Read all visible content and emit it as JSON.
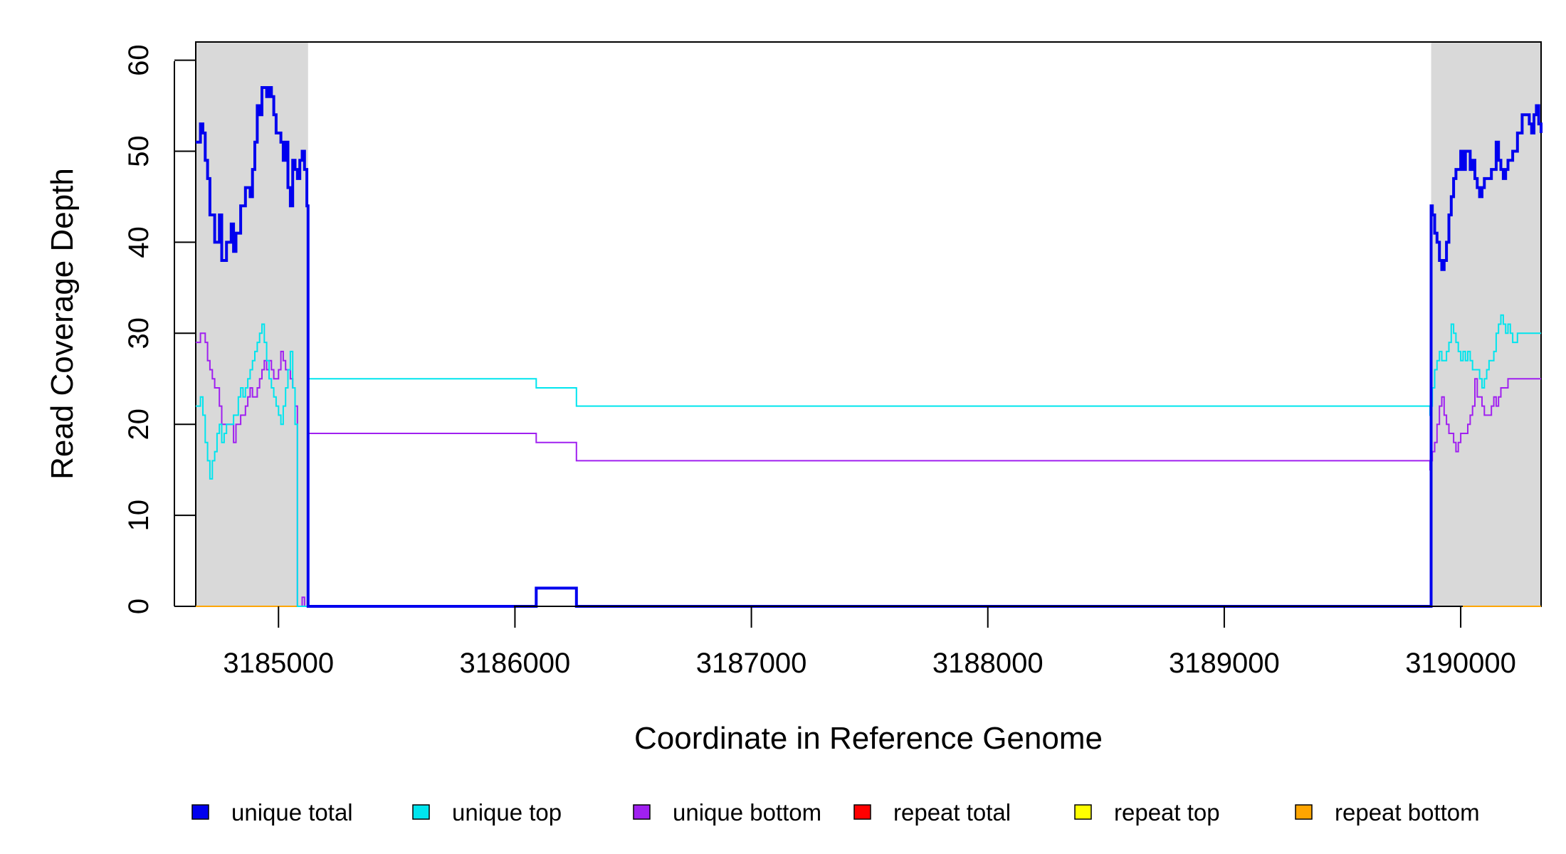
{
  "chart_data": {
    "type": "line",
    "title": "",
    "xlabel": "Coordinate in Reference Genome",
    "ylabel": "Read Coverage Depth",
    "xlim": [
      3184650,
      3190340
    ],
    "ylim": [
      0,
      62
    ],
    "x_ticks": [
      3185000,
      3186000,
      3187000,
      3188000,
      3189000,
      3190000
    ],
    "x_tick_labels": [
      "3185000",
      "3186000",
      "3187000",
      "3188000",
      "3189000",
      "3190000"
    ],
    "y_ticks": [
      0,
      10,
      20,
      30,
      40,
      50,
      60
    ],
    "y_tick_labels": [
      "0",
      "10",
      "20",
      "30",
      "40",
      "50",
      "60"
    ],
    "grid": false,
    "legend_position": "bottom",
    "shaded_regions": [
      {
        "x_start": 3184650,
        "x_end": 3185125,
        "color": "#d9d9d9"
      },
      {
        "x_start": 3189875,
        "x_end": 3190340,
        "color": "#d9d9d9"
      }
    ],
    "series": [
      {
        "name": "unique total",
        "color": "#0000ee",
        "stroke_width": 4,
        "x": [
          3184650,
          3184670,
          3184680,
          3184690,
          3184700,
          3184710,
          3184720,
          3184730,
          3184750,
          3184760,
          3184780,
          3184800,
          3184810,
          3184820,
          3184830,
          3184840,
          3184860,
          3184880,
          3184890,
          3184900,
          3184910,
          3184920,
          3184930,
          3184940,
          3184950,
          3184960,
          3184970,
          3184980,
          3184990,
          3185000,
          3185010,
          3185020,
          3185030,
          3185040,
          3185050,
          3185060,
          3185070,
          3185080,
          3185090,
          3185100,
          3185110,
          3185120,
          3185125,
          3185130,
          3186090,
          3186260,
          3189870,
          3189875,
          3189880,
          3189890,
          3189900,
          3189910,
          3189920,
          3189930,
          3189940,
          3189950,
          3189960,
          3189970,
          3189980,
          3189990,
          3190000,
          3190010,
          3190020,
          3190030,
          3190040,
          3190050,
          3190060,
          3190070,
          3190080,
          3190090,
          3190100,
          3190110,
          3190120,
          3190130,
          3190140,
          3190150,
          3190160,
          3190170,
          3190180,
          3190190,
          3190200,
          3190220,
          3190240,
          3190260,
          3190270,
          3190280,
          3190290,
          3190300,
          3190310,
          3190320,
          3190330,
          3190340
        ],
        "y": [
          51,
          53,
          52,
          49,
          47,
          43,
          43,
          40,
          43,
          38,
          40,
          42,
          39,
          41,
          41,
          44,
          46,
          45,
          48,
          51,
          55,
          54,
          57,
          57,
          56,
          57,
          56,
          54,
          52,
          52,
          51,
          49,
          51,
          46,
          44,
          49,
          48,
          47,
          49,
          50,
          48,
          44,
          0,
          0,
          2,
          0,
          0,
          44,
          43,
          41,
          40,
          38,
          37,
          38,
          40,
          43,
          45,
          47,
          48,
          48,
          50,
          48,
          50,
          50,
          48,
          49,
          47,
          46,
          45,
          46,
          47,
          47,
          47,
          48,
          48,
          51,
          49,
          48,
          47,
          48,
          49,
          50,
          52,
          54,
          54,
          54,
          53,
          52,
          54,
          55,
          53,
          52
        ]
      },
      {
        "name": "unique top",
        "color": "#00e5ee",
        "stroke_width": 2,
        "x": [
          3184650,
          3184670,
          3184680,
          3184690,
          3184700,
          3184710,
          3184720,
          3184730,
          3184740,
          3184750,
          3184760,
          3184770,
          3184780,
          3184790,
          3184800,
          3184810,
          3184820,
          3184830,
          3184840,
          3184850,
          3184860,
          3184870,
          3184880,
          3184890,
          3184900,
          3184910,
          3184920,
          3184930,
          3184940,
          3184950,
          3184960,
          3184970,
          3184980,
          3184990,
          3185000,
          3185010,
          3185020,
          3185030,
          3185040,
          3185050,
          3185060,
          3185070,
          3185080,
          3185090,
          3185100,
          3185110,
          3185120,
          3185125,
          3186090,
          3186260,
          3189870,
          3189875,
          3189880,
          3189890,
          3189900,
          3189910,
          3189920,
          3189930,
          3189940,
          3189950,
          3189960,
          3189970,
          3189980,
          3189990,
          3190000,
          3190010,
          3190020,
          3190030,
          3190040,
          3190050,
          3190060,
          3190070,
          3190080,
          3190090,
          3190100,
          3190110,
          3190120,
          3190130,
          3190140,
          3190150,
          3190160,
          3190170,
          3190180,
          3190190,
          3190200,
          3190210,
          3190220,
          3190230,
          3190240,
          3190250,
          3190260,
          3190270,
          3190280,
          3190290,
          3190300,
          3190310,
          3190320,
          3190330,
          3190340
        ],
        "y": [
          22,
          23,
          21,
          18,
          16,
          14,
          16,
          17,
          19,
          20,
          18,
          19,
          20,
          20,
          20,
          21,
          21,
          23,
          24,
          23,
          24,
          25,
          26,
          27,
          28,
          29,
          30,
          31,
          29,
          27,
          25,
          24,
          23,
          22,
          21,
          20,
          22,
          24,
          26,
          28,
          24,
          20,
          0,
          0,
          0,
          0,
          0,
          25,
          24,
          22,
          21,
          22,
          24,
          26,
          27,
          28,
          27,
          27,
          28,
          29,
          31,
          30,
          29,
          28,
          27,
          28,
          27,
          28,
          27,
          26,
          26,
          26,
          25,
          24,
          25,
          26,
          27,
          27,
          28,
          30,
          31,
          32,
          31,
          30,
          31,
          30,
          29,
          29,
          30,
          30,
          30,
          30,
          30,
          30,
          30,
          30,
          30,
          30,
          30
        ]
      },
      {
        "name": "unique bottom",
        "color": "#a020f0",
        "stroke_width": 2,
        "x": [
          3184650,
          3184670,
          3184680,
          3184690,
          3184700,
          3184710,
          3184720,
          3184730,
          3184740,
          3184750,
          3184760,
          3184770,
          3184780,
          3184790,
          3184800,
          3184810,
          3184820,
          3184830,
          3184840,
          3184850,
          3184860,
          3184870,
          3184880,
          3184890,
          3184900,
          3184910,
          3184920,
          3184930,
          3184940,
          3184950,
          3184960,
          3184970,
          3184980,
          3184990,
          3185000,
          3185010,
          3185020,
          3185030,
          3185040,
          3185050,
          3185060,
          3185070,
          3185080,
          3185090,
          3185100,
          3185110,
          3185120,
          3185125,
          3186090,
          3186260,
          3189870,
          3189875,
          3189880,
          3189890,
          3189900,
          3189910,
          3189920,
          3189930,
          3189940,
          3189950,
          3189960,
          3189970,
          3189980,
          3189990,
          3190000,
          3190010,
          3190020,
          3190030,
          3190040,
          3190050,
          3190060,
          3190070,
          3190080,
          3190090,
          3190100,
          3190110,
          3190120,
          3190130,
          3190140,
          3190150,
          3190160,
          3190170,
          3190180,
          3190190,
          3190200,
          3190210,
          3190220,
          3190230,
          3190240,
          3190250,
          3190260,
          3190270,
          3190280,
          3190290,
          3190300,
          3190310,
          3190320,
          3190330,
          3190340
        ],
        "y": [
          29,
          30,
          30,
          29,
          27,
          26,
          25,
          24,
          24,
          22,
          20,
          20,
          20,
          20,
          20,
          18,
          20,
          20,
          21,
          21,
          22,
          23,
          24,
          23,
          23,
          24,
          25,
          26,
          27,
          26,
          27,
          26,
          25,
          25,
          26,
          28,
          27,
          26,
          26,
          25,
          24,
          22,
          0,
          0,
          1,
          0,
          0,
          19,
          18,
          16,
          15,
          16,
          17,
          18,
          20,
          22,
          23,
          21,
          20,
          19,
          19,
          18,
          17,
          18,
          19,
          19,
          19,
          20,
          21,
          22,
          25,
          23,
          23,
          22,
          21,
          21,
          21,
          22,
          23,
          22,
          23,
          24,
          24,
          24,
          25,
          25,
          25,
          25,
          25,
          25,
          25,
          25,
          25,
          25,
          25,
          25,
          25,
          25,
          25
        ]
      },
      {
        "name": "repeat total",
        "color": "#ff0000",
        "stroke_width": 2,
        "x": [
          3184650,
          3190340
        ],
        "y": [
          0,
          0
        ]
      },
      {
        "name": "repeat top",
        "color": "#ffff00",
        "stroke_width": 2,
        "x": [
          3184650,
          3190340
        ],
        "y": [
          0,
          0
        ]
      },
      {
        "name": "repeat bottom",
        "color": "#ffa500",
        "stroke_width": 2,
        "x": [
          3184650,
          3190340
        ],
        "y": [
          0,
          0
        ]
      }
    ]
  }
}
